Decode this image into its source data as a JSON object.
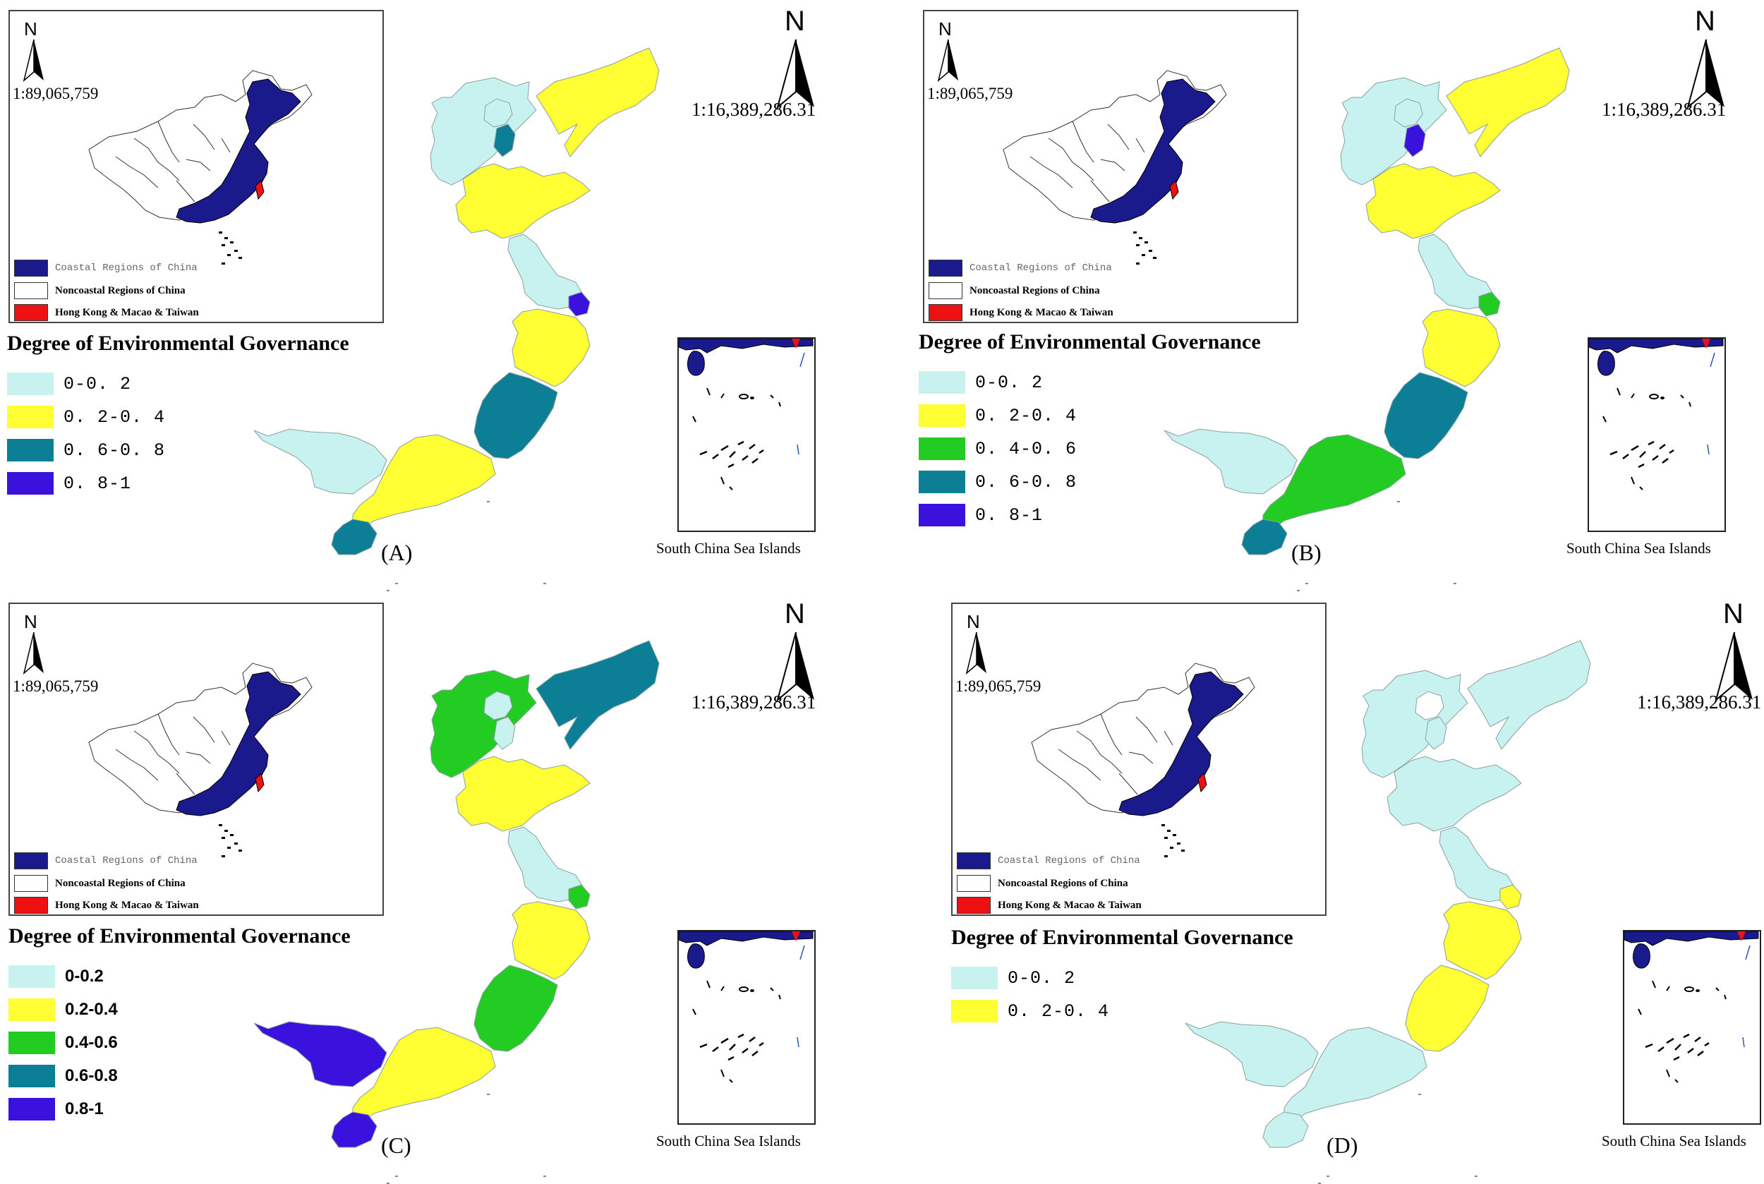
{
  "colors": {
    "coastal": "#1a1a8c",
    "noncoastal": "#ffffff",
    "hk_macao_taiwan": "#ee1111",
    "c_0_02": "#c8f2ef",
    "c_02_04": "#ffff33",
    "c_04_06": "#22cc22",
    "c_06_08": "#0c7f96",
    "c_08_1": "#3a11dd"
  },
  "inset": {
    "north": "N",
    "scale": "1:89,065,759",
    "legend": {
      "coastal": "Coastal Regions of China",
      "noncoastal": "Noncoastal Regions of China",
      "hk": "Hong Kong & Macao & Taiwan"
    }
  },
  "main_map": {
    "north": "N",
    "scale": "1:16,389,286.31",
    "scs_label": "South China Sea Islands"
  },
  "legend_title": "Degree of Environmental Governance",
  "panels": [
    {
      "tag": "(A)",
      "legend": [
        {
          "label": "0-0. 2",
          "color": "#c8f2ef"
        },
        {
          "label": "0. 2-0. 4",
          "color": "#ffff33"
        },
        {
          "label": "0. 6-0. 8",
          "color": "#0c7f96"
        },
        {
          "label": "0. 8-1",
          "color": "#3a11dd"
        }
      ],
      "regions": {
        "liaoning": "#ffff33",
        "hebei": "#c8f2ef",
        "beijing": "#c8f2ef",
        "tianjin": "#0c7f96",
        "shandong": "#ffff33",
        "jiangsu": "#c8f2ef",
        "shanghai": "#3a11dd",
        "zhejiang": "#ffff33",
        "fujian": "#0c7f96",
        "guangdong": "#ffff33",
        "guangxi": "#c8f2ef",
        "hainan": "#0c7f96"
      }
    },
    {
      "tag": "(B)",
      "legend": [
        {
          "label": "0-0. 2",
          "color": "#c8f2ef"
        },
        {
          "label": "0. 2-0. 4",
          "color": "#ffff33"
        },
        {
          "label": "0. 4-0. 6",
          "color": "#22cc22"
        },
        {
          "label": "0. 6-0. 8",
          "color": "#0c7f96"
        },
        {
          "label": "0. 8-1",
          "color": "#3a11dd"
        }
      ],
      "regions": {
        "liaoning": "#ffff33",
        "hebei": "#c8f2ef",
        "beijing": "#c8f2ef",
        "tianjin": "#3a11dd",
        "shandong": "#ffff33",
        "jiangsu": "#c8f2ef",
        "shanghai": "#22cc22",
        "zhejiang": "#ffff33",
        "fujian": "#0c7f96",
        "guangdong": "#22cc22",
        "guangxi": "#c8f2ef",
        "hainan": "#0c7f96"
      }
    },
    {
      "tag": "(C)",
      "legend": [
        {
          "label": "0-0.2",
          "color": "#c8f2ef"
        },
        {
          "label": "0.2-0.4",
          "color": "#ffff33"
        },
        {
          "label": "0.4-0.6",
          "color": "#22cc22"
        },
        {
          "label": "0.6-0.8",
          "color": "#0c7f96"
        },
        {
          "label": "0.8-1",
          "color": "#3a11dd"
        }
      ],
      "regions": {
        "liaoning": "#0c7f96",
        "hebei": "#22cc22",
        "beijing": "#c8f2ef",
        "tianjin": "#c8f2ef",
        "shandong": "#ffff33",
        "jiangsu": "#c8f2ef",
        "shanghai": "#22cc22",
        "zhejiang": "#ffff33",
        "fujian": "#22cc22",
        "guangdong": "#ffff33",
        "guangxi": "#3a11dd",
        "hainan": "#3a11dd"
      }
    },
    {
      "tag": "(D)",
      "legend": [
        {
          "label": "0-0. 2",
          "color": "#c8f2ef"
        },
        {
          "label": "0. 2-0. 4",
          "color": "#ffff33"
        }
      ],
      "regions": {
        "liaoning": "#c8f2ef",
        "hebei": "#c8f2ef",
        "beijing": "#ffffff",
        "tianjin": "#c8f2ef",
        "shandong": "#c8f2ef",
        "jiangsu": "#c8f2ef",
        "shanghai": "#ffff33",
        "zhejiang": "#ffff33",
        "fujian": "#ffff33",
        "guangdong": "#c8f2ef",
        "guangxi": "#c8f2ef",
        "hainan": "#c8f2ef"
      }
    }
  ]
}
